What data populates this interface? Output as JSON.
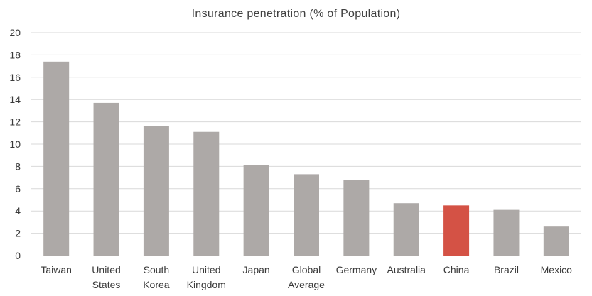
{
  "chart_data": {
    "type": "bar",
    "title": "Insurance penetration (% of Population)",
    "xlabel": "",
    "ylabel": "",
    "ylim": [
      0,
      20
    ],
    "yticks": [
      0,
      2,
      4,
      6,
      8,
      10,
      12,
      14,
      16,
      18,
      20
    ],
    "grid": true,
    "legend": "none",
    "categories": [
      [
        "Taiwan"
      ],
      [
        "United",
        "States"
      ],
      [
        "South",
        "Korea"
      ],
      [
        "United",
        "Kingdom"
      ],
      [
        "Japan"
      ],
      [
        "Global",
        "Average"
      ],
      [
        "Germany"
      ],
      [
        "Australia"
      ],
      [
        "China"
      ],
      [
        "Brazil"
      ],
      [
        "Mexico"
      ]
    ],
    "values": [
      17.4,
      13.7,
      11.6,
      11.1,
      8.1,
      7.3,
      6.8,
      4.7,
      4.5,
      4.1,
      2.6
    ],
    "highlight_index": 8,
    "colors": {
      "bar": "#ada9a7",
      "highlight": "#d45245"
    }
  }
}
